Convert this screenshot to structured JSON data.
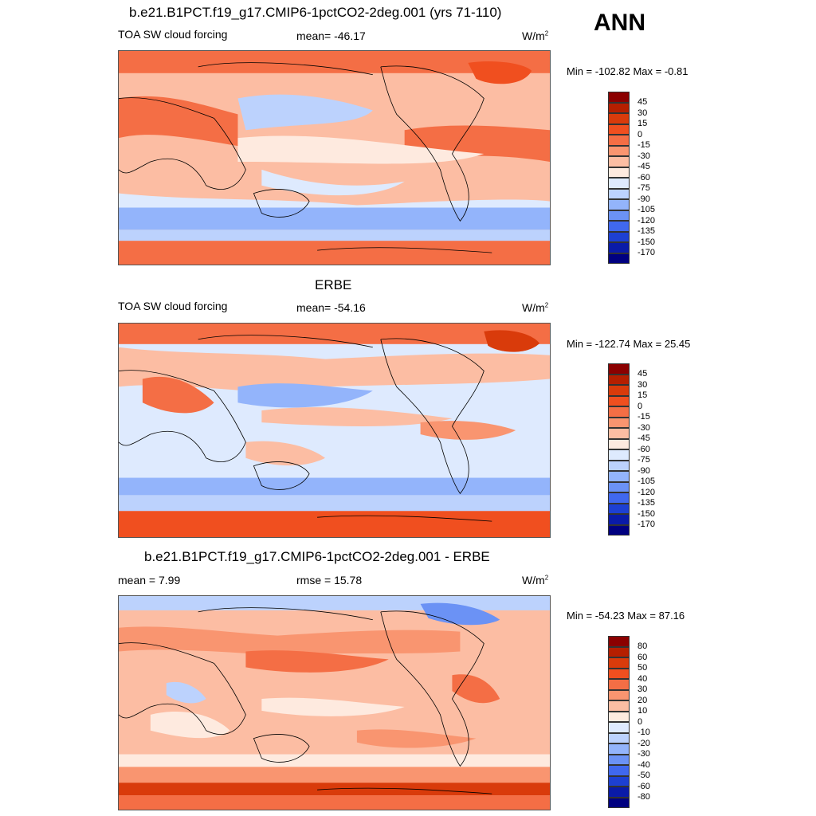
{
  "season": "ANN",
  "units_base": "W/m",
  "units_exp": "2",
  "panels": [
    {
      "title": "b.e21.B1PCT.f19_g17.CMIP6-1pctCO2-2deg.001 (yrs 71-110)",
      "left_label": "TOA SW cloud forcing",
      "stat": "mean= -46.17",
      "minmax": "Min = -102.82 Max =  -0.81",
      "levels": [
        "45",
        "30",
        "15",
        "0",
        "-15",
        "-30",
        "-45",
        "-60",
        "-75",
        "-90",
        "-105",
        "-120",
        "-135",
        "-150",
        "-170"
      ]
    },
    {
      "title": "ERBE",
      "left_label": "TOA SW cloud forcing",
      "stat": "mean= -54.16",
      "minmax": "Min = -122.74 Max =  25.45",
      "levels": [
        "45",
        "30",
        "15",
        "0",
        "-15",
        "-30",
        "-45",
        "-60",
        "-75",
        "-90",
        "-105",
        "-120",
        "-135",
        "-150",
        "-170"
      ]
    },
    {
      "title": "b.e21.B1PCT.f19_g17.CMIP6-1pctCO2-2deg.001 - ERBE",
      "left_label": "mean =   7.99",
      "stat": "rmse =  15.78",
      "minmax": "Min = -54.23 Max =  87.16",
      "levels": [
        "80",
        "60",
        "50",
        "40",
        "30",
        "20",
        "10",
        "0",
        "-10",
        "-20",
        "-30",
        "-40",
        "-50",
        "-60",
        "-80"
      ]
    }
  ],
  "colors": [
    "#8b0000",
    "#b51f00",
    "#d93b0b",
    "#f04f1f",
    "#f46e45",
    "#f99570",
    "#fcbda3",
    "#feeadf",
    "#deeafe",
    "#bcd2fd",
    "#93b4fb",
    "#6b92f5",
    "#4068ee",
    "#1d40d2",
    "#0a1ba8",
    "#000080"
  ]
}
